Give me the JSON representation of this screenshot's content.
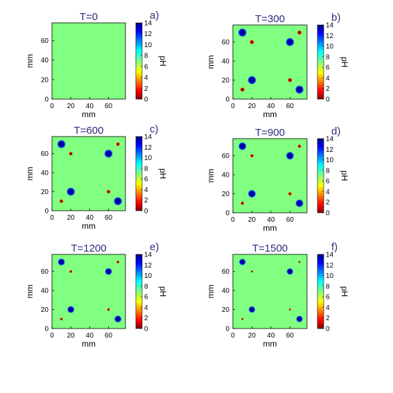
{
  "chart_data": [
    {
      "type": "heatmap",
      "letter": "a)",
      "title": "T=0",
      "xlabel": "mm",
      "ylabel": "mm",
      "colorbar_label": "pH",
      "xlim": [
        0,
        78
      ],
      "ylim": [
        0,
        78
      ],
      "x_ticks": [
        0,
        20,
        40,
        60
      ],
      "y_ticks": [
        0,
        20,
        40,
        60
      ],
      "colorbar_ticks": [
        0,
        2,
        4,
        6,
        8,
        10,
        12,
        14
      ],
      "clim": [
        0,
        14
      ],
      "background_pH": 7,
      "spots": []
    },
    {
      "type": "heatmap",
      "letter": "b)",
      "title": "T=300",
      "xlabel": "mm",
      "ylabel": "mm",
      "colorbar_label": "pH",
      "xlim": [
        0,
        78
      ],
      "ylim": [
        0,
        78
      ],
      "x_ticks": [
        0,
        20,
        40,
        60
      ],
      "y_ticks": [
        0,
        20,
        40,
        60
      ],
      "colorbar_ticks": [
        0,
        2,
        4,
        6,
        8,
        10,
        12,
        14
      ],
      "clim": [
        0,
        14
      ],
      "background_pH": 7,
      "spots": [
        {
          "x": 10,
          "y": 70,
          "radius": 4.5,
          "pH": 0.5
        },
        {
          "x": 60,
          "y": 60,
          "radius": 4.5,
          "pH": 0.5
        },
        {
          "x": 20,
          "y": 20,
          "radius": 4.5,
          "pH": 0.5
        },
        {
          "x": 70,
          "y": 10,
          "radius": 4.5,
          "pH": 0.5
        },
        {
          "x": 70,
          "y": 70,
          "radius": 2.5,
          "pH": 13.5
        },
        {
          "x": 20,
          "y": 60,
          "radius": 2.5,
          "pH": 13.5
        },
        {
          "x": 60,
          "y": 20,
          "radius": 2.5,
          "pH": 13.5
        },
        {
          "x": 10,
          "y": 10,
          "radius": 2.5,
          "pH": 13.5
        }
      ]
    },
    {
      "type": "heatmap",
      "letter": "c)",
      "title": "T=600",
      "xlabel": "mm",
      "ylabel": "mm",
      "colorbar_label": "pH",
      "xlim": [
        0,
        78
      ],
      "ylim": [
        0,
        78
      ],
      "x_ticks": [
        0,
        20,
        40,
        60
      ],
      "y_ticks": [
        0,
        20,
        40,
        60
      ],
      "colorbar_ticks": [
        0,
        2,
        4,
        6,
        8,
        10,
        12,
        14
      ],
      "clim": [
        0,
        14
      ],
      "background_pH": 7,
      "spots": [
        {
          "x": 10,
          "y": 70,
          "radius": 4.5,
          "pH": 0.5
        },
        {
          "x": 60,
          "y": 60,
          "radius": 4.5,
          "pH": 0.5
        },
        {
          "x": 20,
          "y": 20,
          "radius": 4.5,
          "pH": 0.5
        },
        {
          "x": 70,
          "y": 10,
          "radius": 4.5,
          "pH": 0.5
        },
        {
          "x": 70,
          "y": 70,
          "radius": 2.2,
          "pH": 13.5
        },
        {
          "x": 20,
          "y": 60,
          "radius": 2.2,
          "pH": 13.5
        },
        {
          "x": 60,
          "y": 20,
          "radius": 2.2,
          "pH": 13.5
        },
        {
          "x": 10,
          "y": 10,
          "radius": 2.2,
          "pH": 13.5
        }
      ]
    },
    {
      "type": "heatmap",
      "letter": "d)",
      "title": "T=900",
      "xlabel": "mm",
      "ylabel": "mm",
      "colorbar_label": "pH",
      "xlim": [
        0,
        78
      ],
      "ylim": [
        0,
        78
      ],
      "x_ticks": [
        0,
        20,
        40,
        60
      ],
      "y_ticks": [
        0,
        20,
        40,
        60
      ],
      "colorbar_ticks": [
        0,
        2,
        4,
        6,
        8,
        10,
        12,
        14
      ],
      "clim": [
        0,
        14
      ],
      "background_pH": 7,
      "spots": [
        {
          "x": 10,
          "y": 70,
          "radius": 4.2,
          "pH": 0.5
        },
        {
          "x": 60,
          "y": 60,
          "radius": 4.2,
          "pH": 0.5
        },
        {
          "x": 20,
          "y": 20,
          "radius": 4.2,
          "pH": 0.5
        },
        {
          "x": 70,
          "y": 10,
          "radius": 4.2,
          "pH": 0.5
        },
        {
          "x": 70,
          "y": 70,
          "radius": 2.0,
          "pH": 13.5
        },
        {
          "x": 20,
          "y": 60,
          "radius": 2.0,
          "pH": 13.5
        },
        {
          "x": 60,
          "y": 20,
          "radius": 2.0,
          "pH": 13.5
        },
        {
          "x": 10,
          "y": 10,
          "radius": 2.0,
          "pH": 13.5
        }
      ]
    },
    {
      "type": "heatmap",
      "letter": "e)",
      "title": "T=1200",
      "xlabel": "mm",
      "ylabel": "mm",
      "colorbar_label": "pH",
      "xlim": [
        0,
        78
      ],
      "ylim": [
        0,
        78
      ],
      "x_ticks": [
        0,
        20,
        40,
        60
      ],
      "y_ticks": [
        0,
        20,
        40,
        60
      ],
      "colorbar_ticks": [
        0,
        2,
        4,
        6,
        8,
        10,
        12,
        14
      ],
      "clim": [
        0,
        14
      ],
      "background_pH": 7,
      "spots": [
        {
          "x": 10,
          "y": 70,
          "radius": 3.8,
          "pH": 0.5
        },
        {
          "x": 60,
          "y": 60,
          "radius": 3.8,
          "pH": 0.5
        },
        {
          "x": 20,
          "y": 20,
          "radius": 3.8,
          "pH": 0.5
        },
        {
          "x": 70,
          "y": 10,
          "radius": 3.8,
          "pH": 0.5
        },
        {
          "x": 70,
          "y": 70,
          "radius": 1.7,
          "pH": 13.5
        },
        {
          "x": 20,
          "y": 60,
          "radius": 1.7,
          "pH": 13.5
        },
        {
          "x": 60,
          "y": 20,
          "radius": 1.7,
          "pH": 13.5
        },
        {
          "x": 10,
          "y": 10,
          "radius": 1.7,
          "pH": 13.5
        }
      ]
    },
    {
      "type": "heatmap",
      "letter": "f)",
      "title": "T=1500",
      "xlabel": "mm",
      "ylabel": "mm",
      "colorbar_label": "pH",
      "xlim": [
        0,
        78
      ],
      "ylim": [
        0,
        78
      ],
      "x_ticks": [
        0,
        20,
        40,
        60
      ],
      "y_ticks": [
        0,
        20,
        40,
        60
      ],
      "colorbar_ticks": [
        0,
        2,
        4,
        6,
        8,
        10,
        12,
        14
      ],
      "clim": [
        0,
        14
      ],
      "background_pH": 7,
      "spots": [
        {
          "x": 10,
          "y": 70,
          "radius": 3.5,
          "pH": 0.5
        },
        {
          "x": 60,
          "y": 60,
          "radius": 3.5,
          "pH": 0.5
        },
        {
          "x": 20,
          "y": 20,
          "radius": 3.5,
          "pH": 0.5
        },
        {
          "x": 70,
          "y": 10,
          "radius": 3.5,
          "pH": 0.5
        },
        {
          "x": 70,
          "y": 70,
          "radius": 1.3,
          "pH": 13.5
        },
        {
          "x": 20,
          "y": 60,
          "radius": 1.3,
          "pH": 13.5
        },
        {
          "x": 60,
          "y": 20,
          "radius": 1.3,
          "pH": 13.5
        },
        {
          "x": 10,
          "y": 10,
          "radius": 1.3,
          "pH": 13.5
        }
      ]
    }
  ]
}
